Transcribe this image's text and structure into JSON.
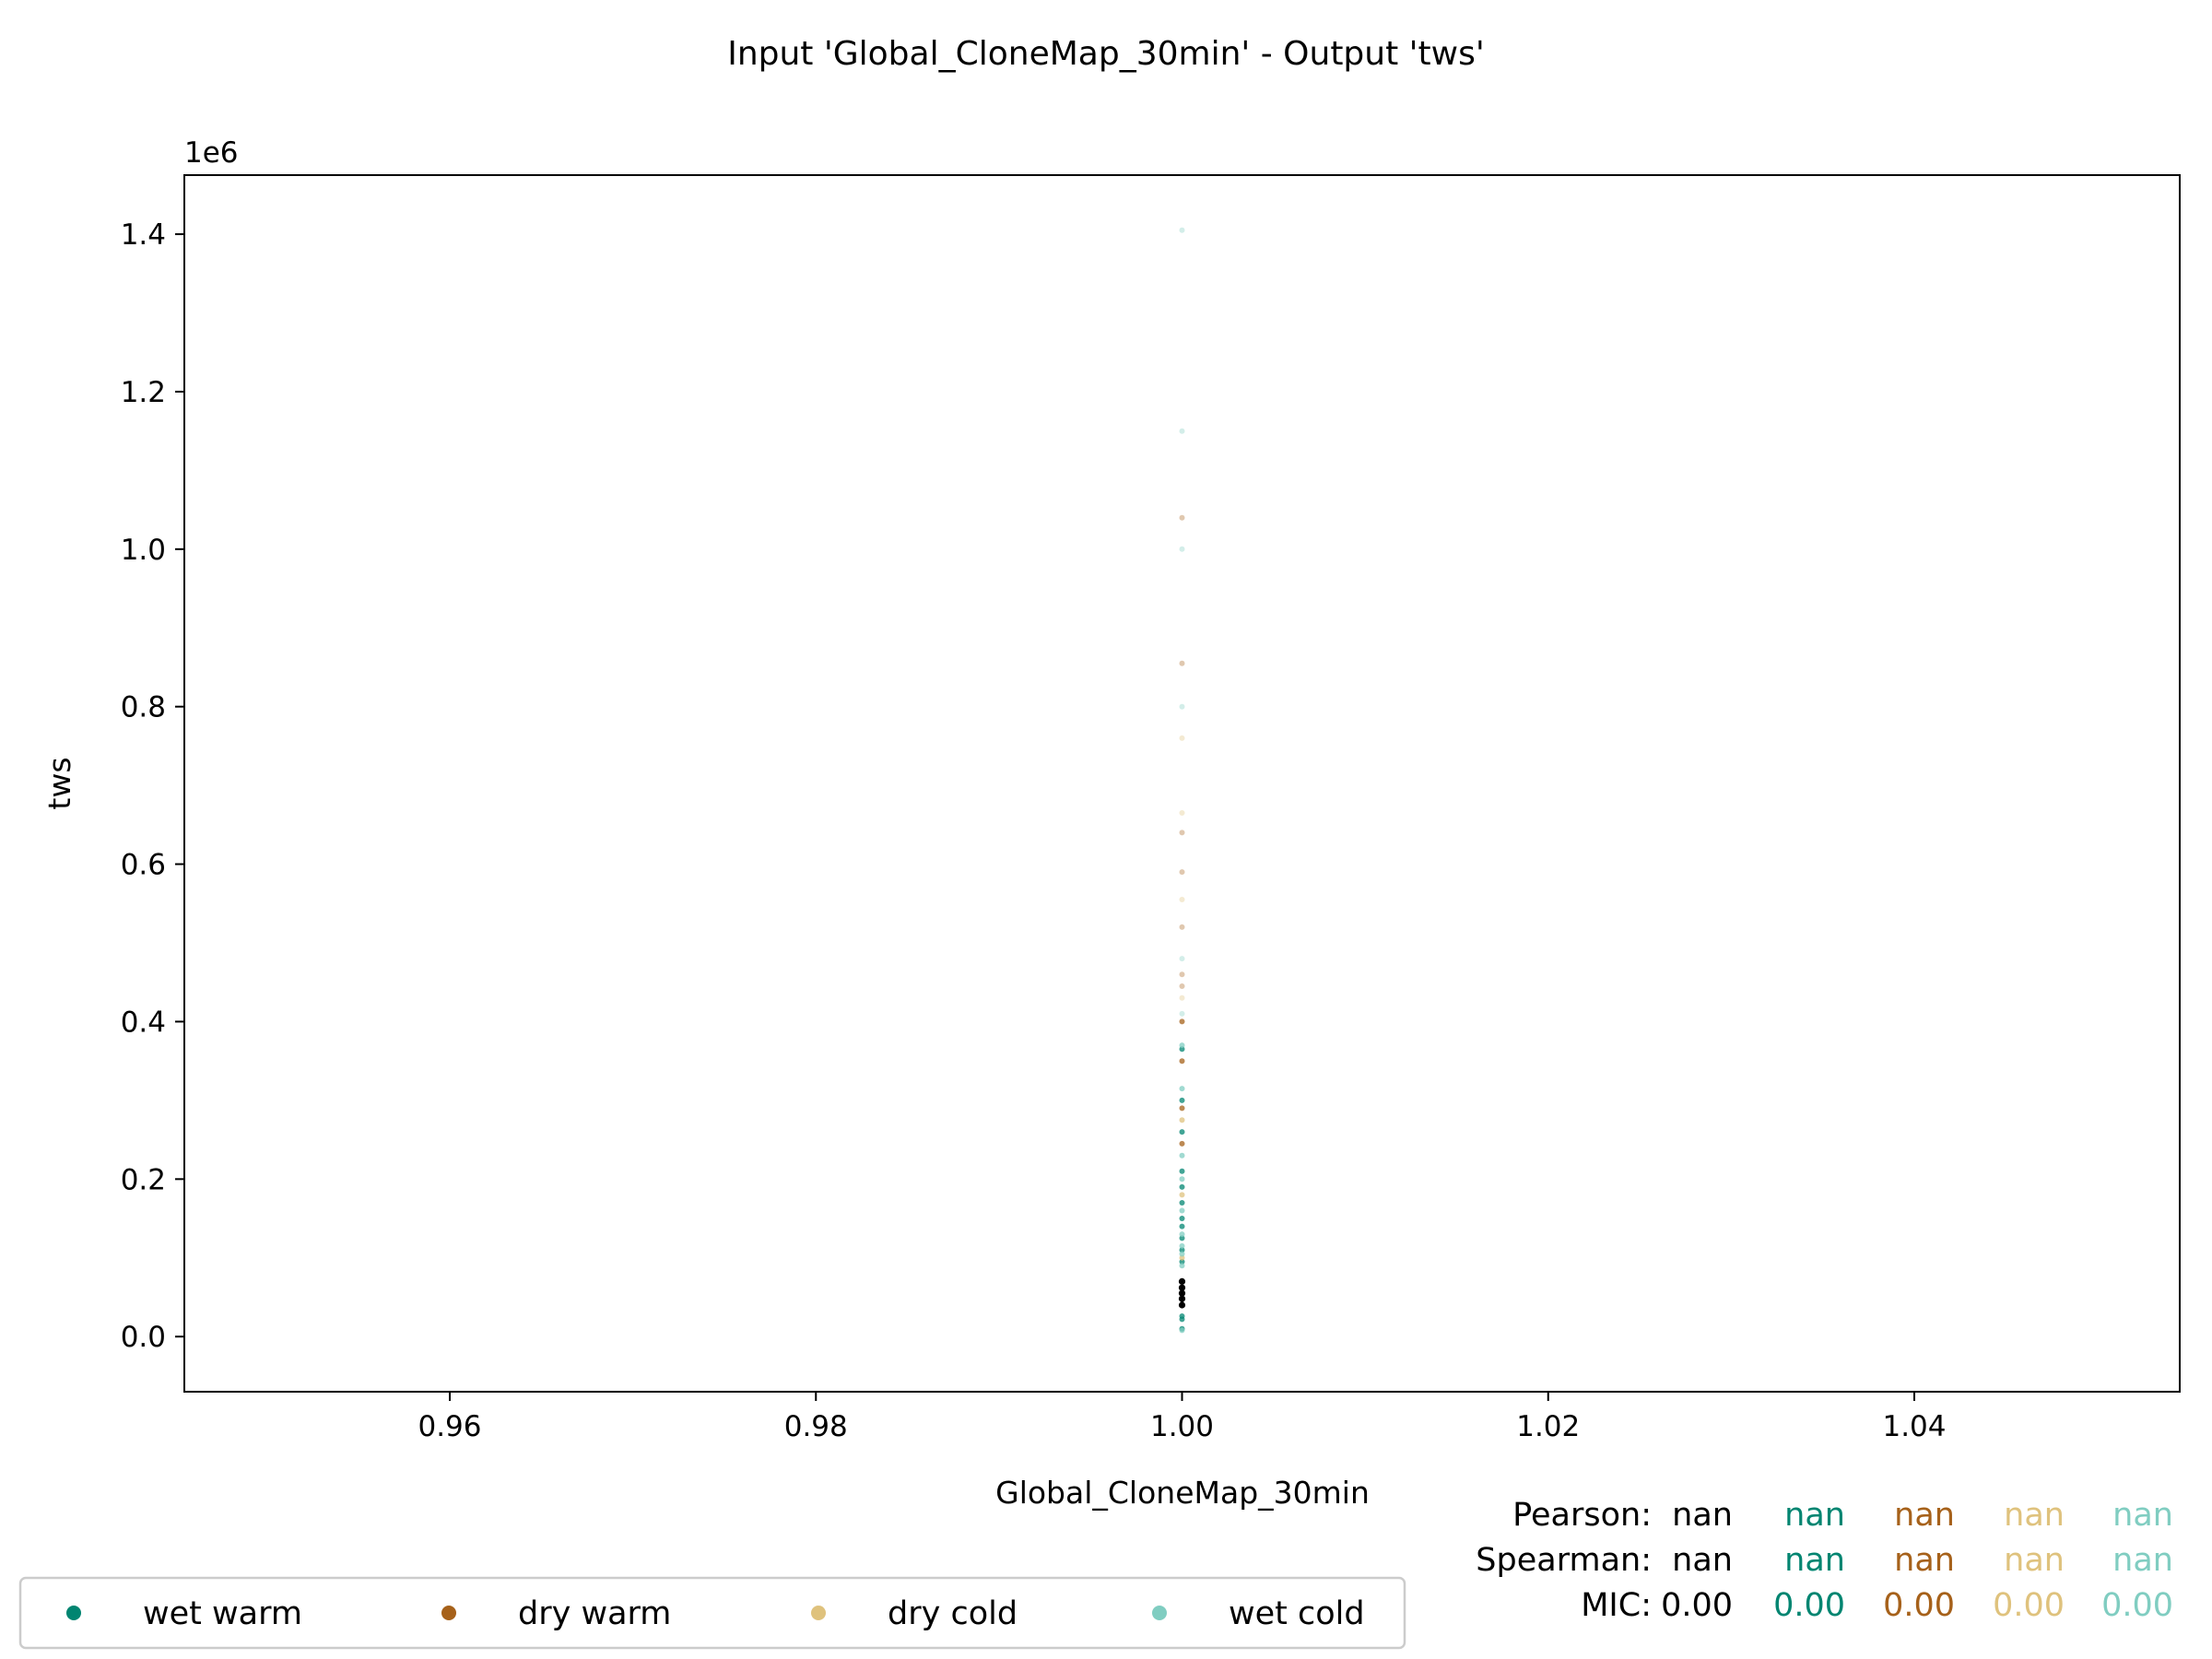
{
  "chart_data": {
    "type": "scatter",
    "title": "Input 'Global_CloneMap_30min' - Output 'tws'",
    "xlabel": "Global_CloneMap_30min",
    "ylabel": "tws",
    "y_offset_text": "1e6",
    "xlim": [
      0.9455,
      1.0545
    ],
    "ylim": [
      -70000,
      1475000
    ],
    "xticks": [
      0.96,
      0.98,
      1.0,
      1.02,
      1.04
    ],
    "xtick_labels": [
      "0.96",
      "0.98",
      "1.00",
      "1.02",
      "1.04"
    ],
    "yticks": [
      0,
      200000,
      400000,
      600000,
      800000,
      1000000,
      1200000,
      1400000
    ],
    "ytick_labels": [
      "0.0",
      "0.2",
      "0.4",
      "0.6",
      "0.8",
      "1.0",
      "1.2",
      "1.4"
    ],
    "grid": false,
    "legend_position": "bottom-left",
    "colors": {
      "all": "#000000",
      "wet warm": "#018571",
      "dry warm": "#a6611a",
      "dry cold": "#dfc27d",
      "wet cold": "#80cdc1"
    },
    "series": [
      {
        "name": "wet warm",
        "color": "#018571",
        "points": [
          [
            1.0,
            10000
          ],
          [
            1.0,
            22000
          ],
          [
            1.0,
            26000
          ],
          [
            1.0,
            95000
          ],
          [
            1.0,
            110000
          ],
          [
            1.0,
            125000
          ],
          [
            1.0,
            140000
          ],
          [
            1.0,
            150000
          ],
          [
            1.0,
            170000
          ],
          [
            1.0,
            190000
          ],
          [
            1.0,
            210000
          ],
          [
            1.0,
            260000
          ],
          [
            1.0,
            300000
          ],
          [
            1.0,
            365000
          ]
        ]
      },
      {
        "name": "dry warm",
        "color": "#a6611a",
        "points": [
          [
            1.0,
            245000
          ],
          [
            1.0,
            290000
          ],
          [
            1.0,
            350000
          ],
          [
            1.0,
            400000
          ],
          [
            1.0,
            445000
          ],
          [
            1.0,
            460000
          ],
          [
            1.0,
            520000
          ],
          [
            1.0,
            590000
          ],
          [
            1.0,
            640000
          ],
          [
            1.0,
            855000
          ],
          [
            1.0,
            1040000
          ]
        ]
      },
      {
        "name": "dry cold",
        "color": "#dfc27d",
        "points": [
          [
            1.0,
            100000
          ],
          [
            1.0,
            180000
          ],
          [
            1.0,
            275000
          ],
          [
            1.0,
            430000
          ],
          [
            1.0,
            555000
          ],
          [
            1.0,
            665000
          ],
          [
            1.0,
            760000
          ]
        ]
      },
      {
        "name": "wet cold",
        "color": "#80cdc1",
        "points": [
          [
            1.0,
            8000
          ],
          [
            1.0,
            90000
          ],
          [
            1.0,
            105000
          ],
          [
            1.0,
            115000
          ],
          [
            1.0,
            130000
          ],
          [
            1.0,
            160000
          ],
          [
            1.0,
            200000
          ],
          [
            1.0,
            230000
          ],
          [
            1.0,
            315000
          ],
          [
            1.0,
            370000
          ],
          [
            1.0,
            410000
          ],
          [
            1.0,
            480000
          ],
          [
            1.0,
            800000
          ],
          [
            1.0,
            1000000
          ],
          [
            1.0,
            1150000
          ],
          [
            1.0,
            1405000
          ]
        ]
      },
      {
        "name": "",
        "color": "#000000",
        "points": [
          [
            1.0,
            40000
          ],
          [
            1.0,
            48000
          ],
          [
            1.0,
            55000
          ],
          [
            1.0,
            62000
          ],
          [
            1.0,
            70000
          ]
        ]
      }
    ],
    "legend": [
      {
        "label": "wet warm",
        "color": "#018571"
      },
      {
        "label": "dry warm",
        "color": "#a6611a"
      },
      {
        "label": "dry cold",
        "color": "#dfc27d"
      },
      {
        "label": "wet cold",
        "color": "#80cdc1"
      }
    ],
    "stats": {
      "rows": [
        {
          "label": "Pearson:",
          "values": [
            "nan",
            "nan",
            "nan",
            "nan",
            "nan"
          ]
        },
        {
          "label": "Spearman:",
          "values": [
            "nan",
            "nan",
            "nan",
            "nan",
            "nan"
          ]
        },
        {
          "label": "MIC:",
          "values": [
            "0.00",
            "0.00",
            "0.00",
            "0.00",
            "0.00"
          ]
        }
      ],
      "colors": [
        "#000000",
        "#018571",
        "#a6611a",
        "#dfc27d",
        "#80cdc1"
      ]
    }
  }
}
